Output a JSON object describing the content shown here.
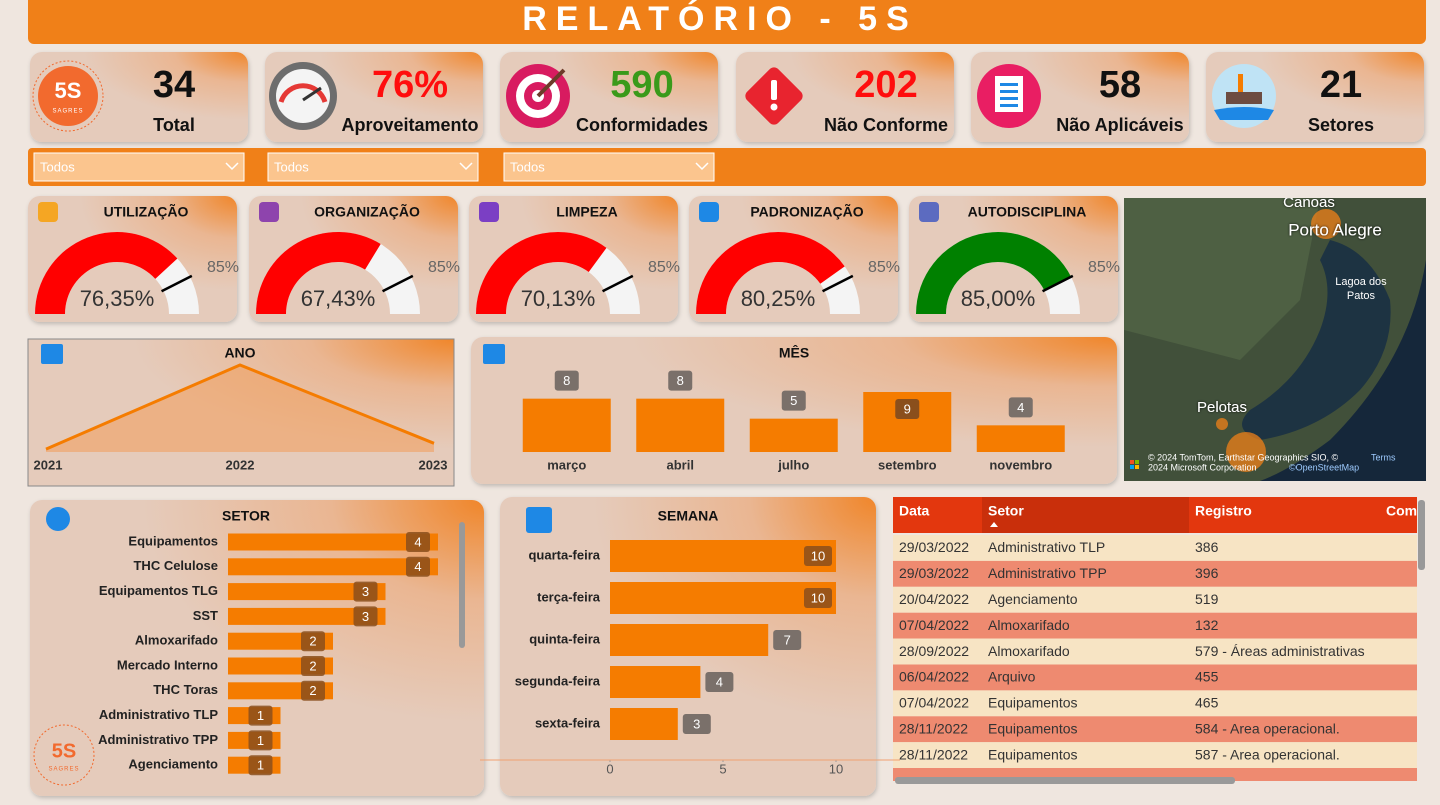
{
  "header": {
    "title": "RELATÓRIO - 5S"
  },
  "logo": {
    "main": "5S",
    "sub": "SAGRES"
  },
  "kpis": [
    {
      "value": "34",
      "label": "Total",
      "color": "#111111"
    },
    {
      "value": "76%",
      "label": "Aproveitamento",
      "color": "#ff0d0d"
    },
    {
      "value": "590",
      "label": "Conformidades",
      "color": "#3a9a1a"
    },
    {
      "value": "202",
      "label": "Não Conforme",
      "color": "#ff0d0d"
    },
    {
      "value": "58",
      "label": "Não Aplicáveis",
      "color": "#111111"
    },
    {
      "value": "21",
      "label": "Setores",
      "color": "#111111"
    }
  ],
  "filters": [
    "Todos",
    "Todos",
    "Todos"
  ],
  "chart_data": [
    {
      "type": "gauge",
      "title": "UTILIZAÇÃO",
      "value": 76.35,
      "value_label": "76,35%",
      "target": 85,
      "target_label": "85%",
      "ylim": [
        0,
        100
      ],
      "color": "#ff0000"
    },
    {
      "type": "gauge",
      "title": "ORGANIZAÇÃO",
      "value": 67.43,
      "value_label": "67,43%",
      "target": 85,
      "target_label": "85%",
      "ylim": [
        0,
        100
      ],
      "color": "#ff0000"
    },
    {
      "type": "gauge",
      "title": "LIMPEZA",
      "value": 70.13,
      "value_label": "70,13%",
      "target": 85,
      "target_label": "85%",
      "ylim": [
        0,
        100
      ],
      "color": "#ff0000"
    },
    {
      "type": "gauge",
      "title": "PADRONIZAÇÃO",
      "value": 80.25,
      "value_label": "80,25%",
      "target": 85,
      "target_label": "85%",
      "ylim": [
        0,
        100
      ],
      "color": "#ff0000"
    },
    {
      "type": "gauge",
      "title": "AUTODISCIPLINA",
      "value": 85.0,
      "value_label": "85,00%",
      "target": 85,
      "target_label": "85%",
      "ylim": [
        0,
        100
      ],
      "color": "#008000"
    },
    {
      "type": "area",
      "title": "ANO",
      "x": [
        "2021",
        "2022",
        "2023"
      ],
      "values": [
        1,
        30,
        3
      ],
      "ylim": [
        0,
        30
      ],
      "color": "#f57c00"
    },
    {
      "type": "bar",
      "title": "MÊS",
      "categories": [
        "março",
        "abril",
        "julho",
        "setembro",
        "novembro"
      ],
      "values": [
        8,
        8,
        5,
        9,
        4
      ],
      "ylim": [
        0,
        9
      ],
      "color": "#f57c00"
    },
    {
      "type": "bar",
      "horizontal": true,
      "title": "SETOR",
      "categories": [
        "Equipamentos",
        "THC Celulose",
        "Equipamentos TLG",
        "SST",
        "Almoxarifado",
        "Mercado Interno",
        "THC Toras",
        "Administrativo TLP",
        "Administrativo TPP",
        "Agenciamento"
      ],
      "values": [
        4,
        4,
        3,
        3,
        2,
        2,
        2,
        1,
        1,
        1
      ],
      "xlim": [
        0,
        4
      ],
      "color": "#f57c00"
    },
    {
      "type": "bar",
      "horizontal": true,
      "title": "SEMANA",
      "categories": [
        "quarta-feira",
        "terça-feira",
        "quinta-feira",
        "segunda-feira",
        "sexta-feira"
      ],
      "values": [
        10,
        10,
        7,
        4,
        3
      ],
      "xlim": [
        0,
        10
      ],
      "xticks": [
        0,
        5,
        10
      ],
      "color": "#f57c00"
    }
  ],
  "map": {
    "labels": [
      "Canoas",
      "Porto Alegre",
      "Lagoa dos Patos",
      "Pelotas"
    ],
    "attribution": [
      "© 2024 TomTom, Earthstar Geographics SIO, ©",
      "2024 Microsoft Corporation",
      "©OpenStreetMap",
      "Terms"
    ]
  },
  "table": {
    "columns": [
      "Data",
      "Setor",
      "Registro",
      "Com"
    ],
    "rows": [
      [
        "29/03/2022",
        "Administrativo TLP",
        "386"
      ],
      [
        "29/03/2022",
        "Administrativo TPP",
        "396"
      ],
      [
        "20/04/2022",
        "Agenciamento",
        "519"
      ],
      [
        "07/04/2022",
        "Almoxarifado",
        "132"
      ],
      [
        "28/09/2022",
        "Almoxarifado",
        "579 - Áreas administrativas"
      ],
      [
        "06/04/2022",
        "Arquivo",
        "455"
      ],
      [
        "07/04/2022",
        "Equipamentos",
        "465"
      ],
      [
        "28/11/2022",
        "Equipamentos",
        "584 - Area operacional."
      ],
      [
        "28/11/2022",
        "Equipamentos",
        "587 - Area operacional."
      ]
    ]
  }
}
